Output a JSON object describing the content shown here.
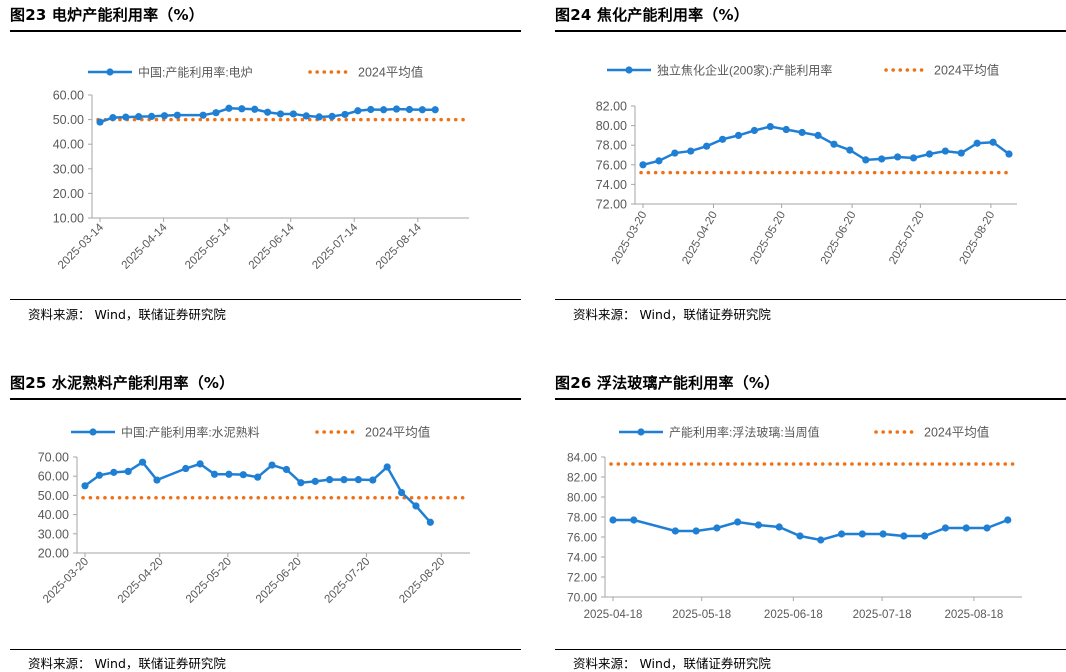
{
  "colors": {
    "series": "#1f7fd4",
    "average": "#f07015",
    "axis": "#a6a6a6",
    "text": "#595959"
  },
  "average_label": "2024平均值",
  "chart_data": [
    {
      "type": "line",
      "title": "图23 电炉产能利用率（%）",
      "series_name": "中国:产能利用率:电炉",
      "source": "资料来源： Wind，联储证券研究院",
      "ylim": [
        10,
        60
      ],
      "y_ticks": [
        10,
        20,
        30,
        40,
        50,
        60
      ],
      "y_tick_labels": [
        "10.00",
        "20.00",
        "30.00",
        "40.00",
        "50.00",
        "60.00"
      ],
      "x_labels": [
        "2025-03-14",
        "2025-04-14",
        "2025-05-14",
        "2025-06-14",
        "2025-07-14",
        "2025-08-14"
      ],
      "x_label_rotation": 45,
      "x_range": [
        0,
        28
      ],
      "x_label_positions": [
        0,
        4.93,
        9.86,
        14.79,
        19.72,
        24.65
      ],
      "series": [
        {
          "name": "中国:产能利用率:电炉",
          "x": [
            0,
            1,
            2,
            3,
            4,
            5,
            6,
            8,
            9,
            10,
            11,
            12,
            13,
            14,
            15,
            16,
            17,
            18,
            19,
            20,
            21,
            22,
            23,
            24,
            25,
            26
          ],
          "values": [
            49.0,
            50.8,
            51.0,
            51.2,
            51.3,
            51.6,
            51.8,
            51.8,
            52.8,
            54.6,
            54.4,
            54.2,
            53.0,
            52.3,
            52.3,
            51.5,
            51.1,
            51.3,
            52.1,
            53.6,
            54.1,
            54.0,
            54.3,
            54.1,
            54.0,
            54.0
          ]
        },
        {
          "name": "2024平均值",
          "style": "dotted",
          "constant": 50.0
        }
      ]
    },
    {
      "type": "line",
      "title": "图24 焦化产能利用率（%）",
      "series_name": "独立焦化企业(200家):产能利用率",
      "source": "资料来源： Wind，联储证券研究院",
      "ylim": [
        72,
        82
      ],
      "y_ticks": [
        72,
        74,
        76,
        78,
        80,
        82
      ],
      "y_tick_labels": [
        "72.00",
        "74.00",
        "76.00",
        "78.00",
        "80.00",
        "82.00"
      ],
      "x_labels": [
        "2025-03-20",
        "2025-04-20",
        "2025-05-20",
        "2025-06-20",
        "2025-07-20",
        "2025-08-20"
      ],
      "x_label_rotation": 60,
      "x_range": [
        0,
        23
      ],
      "x_label_positions": [
        0,
        4.43,
        8.71,
        13.14,
        17.43,
        21.86
      ],
      "series": [
        {
          "name": "独立焦化企业(200家):产能利用率",
          "x": [
            0,
            1,
            2,
            3,
            4,
            5,
            6,
            7,
            8,
            9,
            10,
            11,
            12,
            13,
            14,
            15,
            16,
            17,
            18,
            19,
            20,
            21,
            22,
            23
          ],
          "values": [
            76.0,
            76.4,
            77.2,
            77.4,
            77.9,
            78.6,
            79.0,
            79.5,
            79.9,
            79.6,
            79.3,
            79.0,
            78.1,
            77.5,
            76.5,
            76.6,
            76.8,
            76.7,
            77.1,
            77.4,
            77.2,
            78.2,
            78.3,
            77.1
          ]
        },
        {
          "name": "2024平均值",
          "style": "dotted",
          "constant": 75.2
        }
      ]
    },
    {
      "type": "line",
      "title": "图25 水泥熟料产能利用率（%）",
      "series_name": "中国:产能利用率:水泥熟料",
      "source": "资料来源： Wind，联储证券研究院",
      "ylim": [
        20,
        70
      ],
      "y_ticks": [
        20,
        30,
        40,
        50,
        60,
        70
      ],
      "y_tick_labels": [
        "20.00",
        "30.00",
        "40.00",
        "50.00",
        "60.00",
        "70.00"
      ],
      "x_labels": [
        "2025-03-20",
        "2025-04-20",
        "2025-05-20",
        "2025-06-20",
        "2025-07-20",
        "2025-08-20"
      ],
      "x_label_rotation": 45,
      "x_range": [
        0,
        26.2
      ],
      "x_label_positions": [
        0,
        5.19,
        9.93,
        14.79,
        19.56,
        24.76
      ],
      "series": [
        {
          "name": "中国:产能利用率:水泥熟料",
          "x": [
            0,
            1,
            2,
            3,
            4,
            5,
            7,
            8,
            9,
            10,
            11,
            12,
            13,
            14,
            15,
            16,
            17,
            18,
            19,
            20,
            21,
            22,
            23,
            24
          ],
          "values": [
            55.0,
            60.5,
            62.0,
            62.5,
            67.3,
            58.0,
            64.0,
            66.4,
            61.0,
            61.0,
            60.8,
            59.5,
            65.8,
            63.5,
            56.6,
            57.3,
            58.2,
            58.2,
            58.2,
            58.0,
            64.8,
            51.5,
            44.5,
            36.0
          ]
        },
        {
          "name": "2024平均值",
          "style": "dotted",
          "constant": 48.8
        }
      ]
    },
    {
      "type": "line",
      "title": "图26 浮法玻璃产能利用率（%）",
      "series_name": "产能利用率:浮法玻璃:当周值",
      "source": "资料来源： Wind，联储证券研究院",
      "ylim": [
        70,
        84
      ],
      "y_ticks": [
        70,
        72,
        74,
        76,
        78,
        80,
        82,
        84
      ],
      "y_tick_labels": [
        "70.00",
        "72.00",
        "74.00",
        "76.00",
        "78.00",
        "80.00",
        "82.00",
        "84.00"
      ],
      "x_labels": [
        "2025-04-18",
        "2025-05-18",
        "2025-06-18",
        "2025-07-18",
        "2025-08-18"
      ],
      "x_label_rotation": 0,
      "x_range": [
        0,
        19.3
      ],
      "x_label_positions": [
        0,
        4.27,
        8.68,
        12.95,
        17.37
      ],
      "series": [
        {
          "name": "产能利用率:浮法玻璃:当周值",
          "x": [
            0,
            1,
            3,
            4,
            5,
            6,
            7,
            8,
            9,
            10,
            11,
            12,
            13,
            14,
            15,
            16,
            17,
            18,
            19
          ],
          "values": [
            77.7,
            77.7,
            76.6,
            76.6,
            76.9,
            77.5,
            77.2,
            77.0,
            76.1,
            75.7,
            76.3,
            76.3,
            76.3,
            76.1,
            76.1,
            76.9,
            76.9,
            76.9,
            77.7
          ]
        },
        {
          "name": "2024平均值",
          "style": "dotted",
          "constant": 83.3
        }
      ]
    }
  ]
}
